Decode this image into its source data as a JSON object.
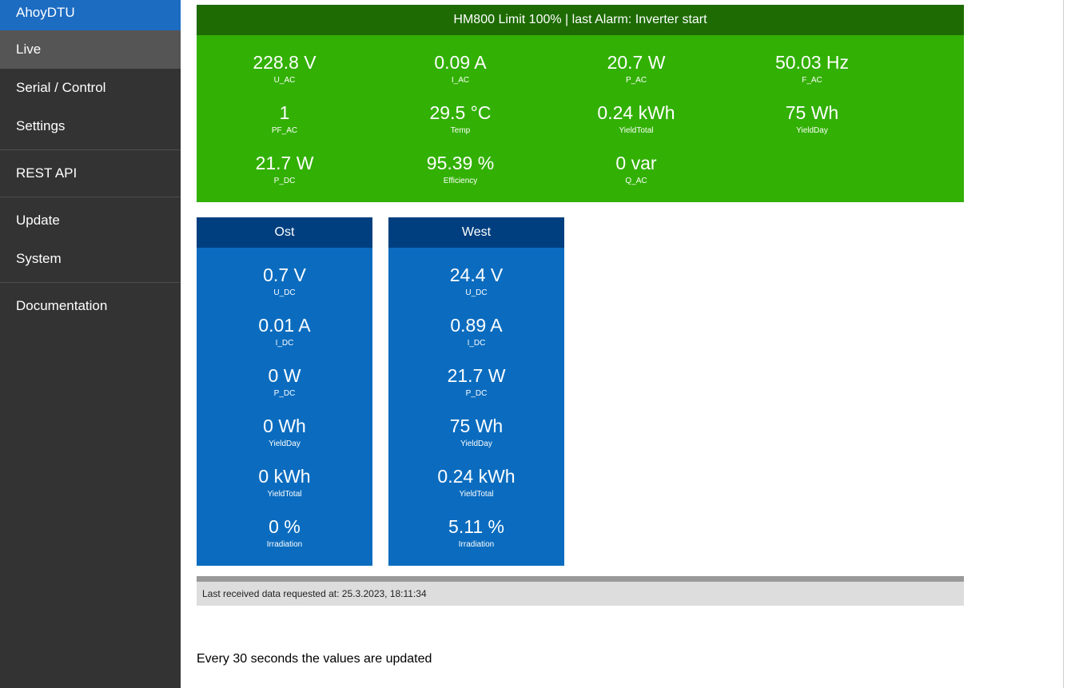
{
  "sidebar": {
    "brand": "AhoyDTU",
    "items": [
      {
        "label": "Live"
      },
      {
        "label": "Serial / Control"
      },
      {
        "label": "Settings"
      },
      {
        "label": "REST API"
      },
      {
        "label": "Update"
      },
      {
        "label": "System"
      },
      {
        "label": "Documentation"
      }
    ]
  },
  "inverter": {
    "header": "HM800 Limit 100% | last Alarm: Inverter start",
    "metrics": [
      {
        "value": "228.8 V",
        "label": "U_AC"
      },
      {
        "value": "0.09 A",
        "label": "I_AC"
      },
      {
        "value": "20.7 W",
        "label": "P_AC"
      },
      {
        "value": "50.03 Hz",
        "label": "F_AC"
      },
      {
        "value": "1",
        "label": "PF_AC"
      },
      {
        "value": "29.5 °C",
        "label": "Temp"
      },
      {
        "value": "0.24 kWh",
        "label": "YieldTotal"
      },
      {
        "value": "75 Wh",
        "label": "YieldDay"
      },
      {
        "value": "21.7 W",
        "label": "P_DC"
      },
      {
        "value": "95.39 %",
        "label": "Efficiency"
      },
      {
        "value": "0 var",
        "label": "Q_AC"
      }
    ]
  },
  "strings": [
    {
      "name": "Ost",
      "metrics": [
        {
          "value": "0.7 V",
          "label": "U_DC"
        },
        {
          "value": "0.01 A",
          "label": "I_DC"
        },
        {
          "value": "0 W",
          "label": "P_DC"
        },
        {
          "value": "0 Wh",
          "label": "YieldDay"
        },
        {
          "value": "0 kWh",
          "label": "YieldTotal"
        },
        {
          "value": "0 %",
          "label": "Irradiation"
        }
      ]
    },
    {
      "name": "West",
      "metrics": [
        {
          "value": "24.4 V",
          "label": "U_DC"
        },
        {
          "value": "0.89 A",
          "label": "I_DC"
        },
        {
          "value": "21.7 W",
          "label": "P_DC"
        },
        {
          "value": "75 Wh",
          "label": "YieldDay"
        },
        {
          "value": "0.24 kWh",
          "label": "YieldTotal"
        },
        {
          "value": "5.11 %",
          "label": "Irradiation"
        }
      ]
    }
  ],
  "status": {
    "last_received": "Last received data requested at: 25.3.2023, 18:11:34",
    "update_note": "Every 30 seconds the values are updated"
  },
  "colors": {
    "sidebar_bg": "#333333",
    "brand_bg": "#1c6cc2",
    "inverter_bg": "#32b004",
    "inverter_header": "#1d6b02",
    "string_bg": "#0b6cbf",
    "string_header": "#003f7f"
  }
}
